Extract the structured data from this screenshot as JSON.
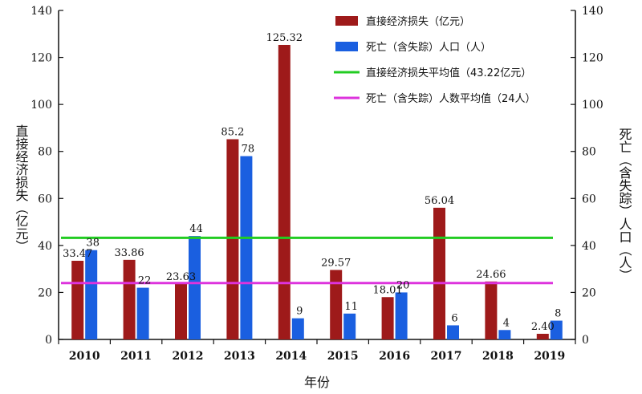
{
  "chart_data": {
    "type": "bar",
    "title": "",
    "categories": [
      "2010",
      "2011",
      "2012",
      "2013",
      "2014",
      "2015",
      "2016",
      "2017",
      "2018",
      "2019"
    ],
    "series": [
      {
        "name": "直接经济损失（亿元）",
        "axis": "left",
        "color": "#9e1a1a",
        "values": [
          33.47,
          33.86,
          23.63,
          85.2,
          125.32,
          29.57,
          18.01,
          56.04,
          24.66,
          2.4
        ],
        "labels": [
          "33.47",
          "33.86",
          "23.63",
          "85.2",
          "125.32",
          "29.57",
          "18.01",
          "56.04",
          "24.66",
          "2.40"
        ]
      },
      {
        "name": "死亡（含失踪）人口（人）",
        "axis": "right",
        "color": "#1a5fe0",
        "values": [
          38,
          22,
          44,
          78,
          9,
          11,
          20,
          6,
          4,
          8
        ],
        "labels": [
          "38",
          "22",
          "44",
          "78",
          "9",
          "11",
          "20",
          "6",
          "4",
          "8"
        ]
      }
    ],
    "reference_lines": [
      {
        "name": "直接经济损失平均值（43.22亿元）",
        "axis": "left",
        "value": 43.22,
        "color": "#22cc22"
      },
      {
        "name": "死亡（含失踪）人数平均值（24人）",
        "axis": "right",
        "value": 24,
        "color": "#dd33dd"
      }
    ],
    "xlabel": "年份",
    "ylabel": "直接经济损失（亿元）",
    "y2label": "死亡（含失踪）人口（人）",
    "ylim": [
      0,
      140
    ],
    "y2lim": [
      0,
      140
    ],
    "yticks": [
      0,
      20,
      40,
      60,
      80,
      100,
      120,
      140
    ],
    "legend_position": "top-right"
  }
}
